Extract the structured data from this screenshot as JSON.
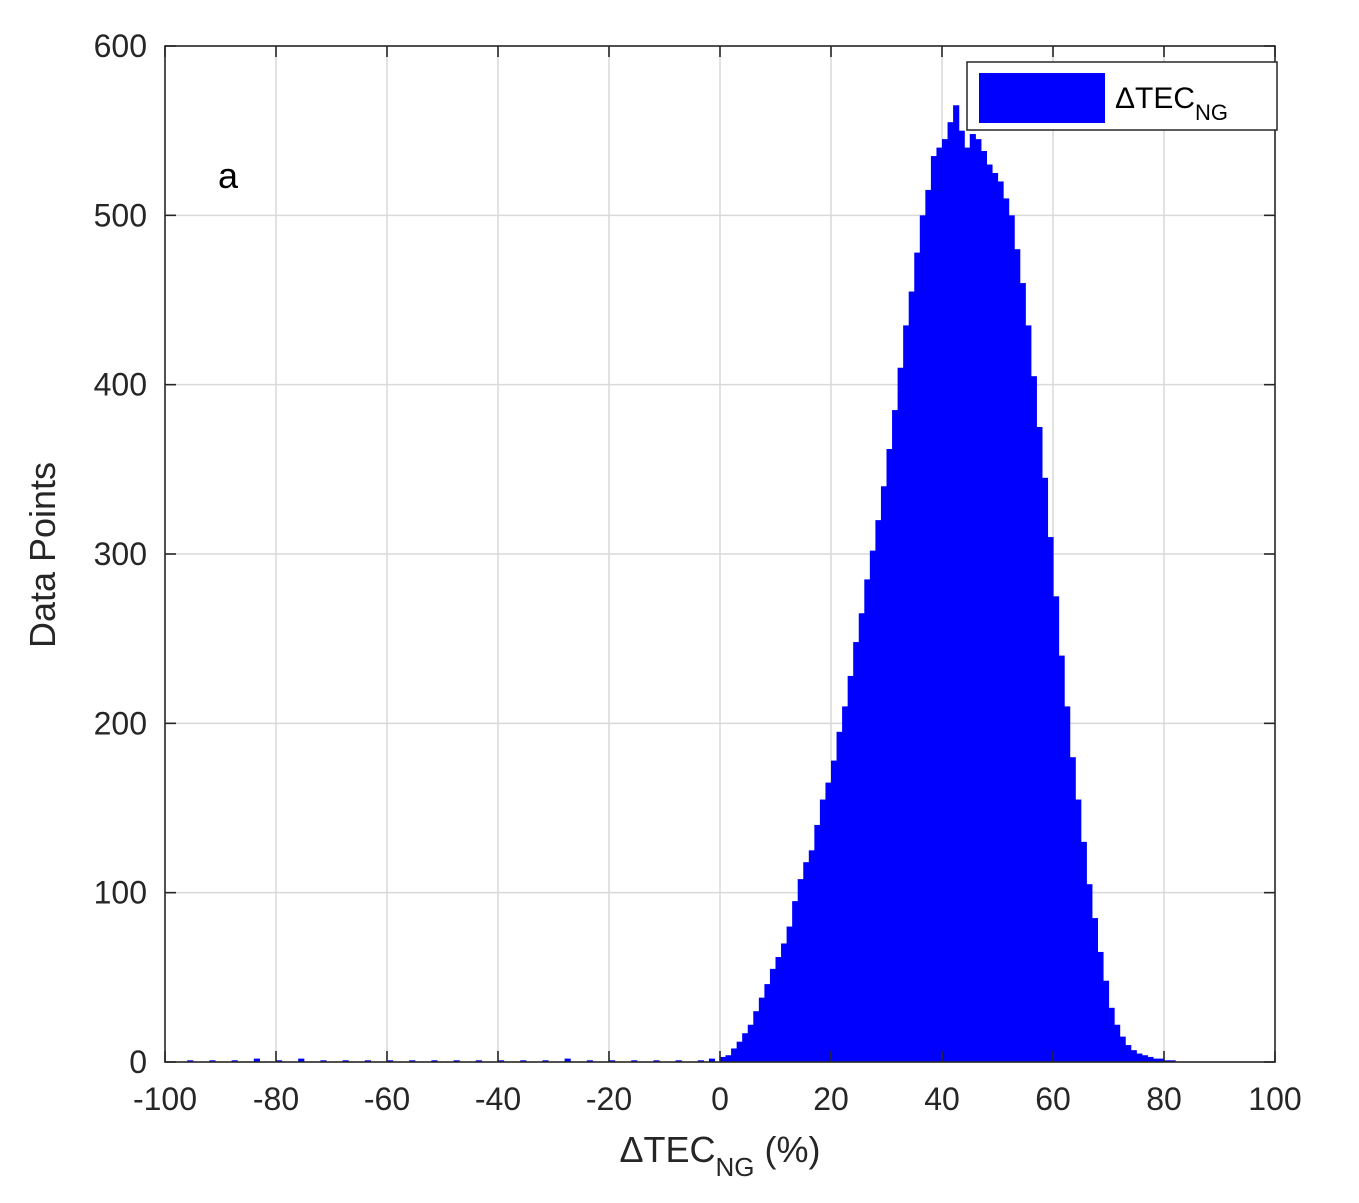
{
  "chart_data": {
    "type": "bar",
    "panel_label": "a",
    "xlabel": {
      "prefix": "ΔTEC",
      "sub": "NG",
      "suffix": " (%)"
    },
    "ylabel": "Data Points",
    "xlim": [
      -100,
      100
    ],
    "ylim": [
      0,
      600
    ],
    "xticks": [
      -100,
      -80,
      -60,
      -40,
      -20,
      0,
      20,
      40,
      60,
      80,
      100
    ],
    "yticks": [
      0,
      100,
      200,
      300,
      400,
      500,
      600
    ],
    "grid": true,
    "legend": {
      "position": "top-right",
      "entries": [
        {
          "prefix": "ΔTEC",
          "sub": "NG"
        }
      ]
    },
    "bar_color": "#0000ff",
    "series": [
      {
        "x": [
          -96,
          -92,
          -88,
          -84,
          -80,
          -76,
          -72,
          -68,
          -64,
          -60,
          -56,
          -52,
          -48,
          -44,
          -40,
          -36,
          -32,
          -28,
          -24,
          -20,
          -16,
          -12,
          -8,
          -4,
          -2,
          0,
          1,
          2,
          3,
          4,
          5,
          6,
          7,
          8,
          9,
          10,
          11,
          12,
          13,
          14,
          15,
          16,
          17,
          18,
          19,
          20,
          21,
          22,
          23,
          24,
          25,
          26,
          27,
          28,
          29,
          30,
          31,
          32,
          33,
          34,
          35,
          36,
          37,
          38,
          39,
          40,
          41,
          42,
          43,
          44,
          45,
          46,
          47,
          48,
          49,
          50,
          51,
          52,
          53,
          54,
          55,
          56,
          57,
          58,
          59,
          60,
          61,
          62,
          63,
          64,
          65,
          66,
          67,
          68,
          69,
          70,
          71,
          72,
          73,
          74,
          75,
          76,
          77,
          78,
          79,
          80,
          81
        ],
        "values": [
          1,
          1,
          1,
          2,
          1,
          2,
          1,
          1,
          1,
          1,
          1,
          1,
          1,
          1,
          1,
          1,
          1,
          2,
          1,
          1,
          1,
          1,
          1,
          1,
          2,
          3,
          4,
          8,
          12,
          17,
          22,
          30,
          38,
          46,
          55,
          62,
          70,
          80,
          95,
          108,
          118,
          125,
          140,
          155,
          165,
          178,
          195,
          210,
          228,
          248,
          265,
          285,
          302,
          320,
          340,
          362,
          385,
          410,
          435,
          455,
          478,
          500,
          515,
          535,
          540,
          545,
          555,
          565,
          550,
          540,
          548,
          545,
          538,
          530,
          525,
          520,
          510,
          500,
          480,
          460,
          435,
          405,
          375,
          345,
          310,
          275,
          240,
          210,
          180,
          155,
          130,
          105,
          85,
          65,
          48,
          32,
          22,
          15,
          10,
          7,
          5,
          4,
          3,
          2,
          2,
          1,
          1
        ]
      }
    ]
  }
}
